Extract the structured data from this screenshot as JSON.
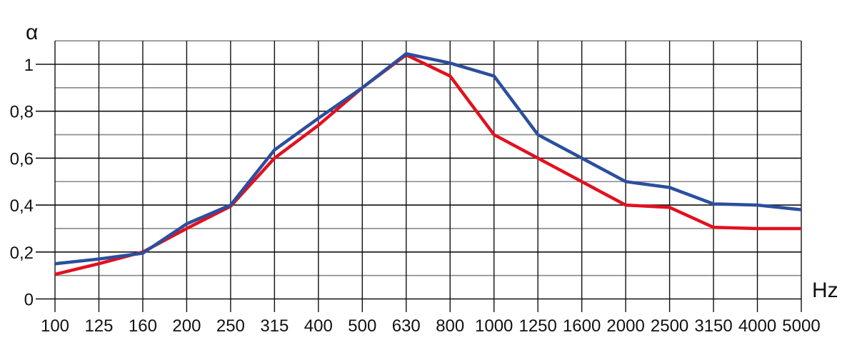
{
  "chart_data": {
    "type": "line",
    "title": "",
    "xlabel": "Hz",
    "ylabel": "α",
    "categories": [
      "100",
      "125",
      "160",
      "200",
      "250",
      "315",
      "400",
      "500",
      "630",
      "800",
      "1000",
      "1250",
      "1600",
      "2000",
      "2500",
      "3150",
      "4000",
      "5000"
    ],
    "y_ticks": [
      {
        "value": 0,
        "label": "0"
      },
      {
        "value": 0.2,
        "label": "0,2"
      },
      {
        "value": 0.4,
        "label": "0,4"
      },
      {
        "value": 0.6,
        "label": "0,6"
      },
      {
        "value": 0.8,
        "label": "0,8"
      },
      {
        "value": 1,
        "label": "1"
      }
    ],
    "ylim": [
      0,
      1.1
    ],
    "grid": true,
    "series": [
      {
        "color": "#2b4f9e",
        "values": [
          0.15,
          0.17,
          0.195,
          0.32,
          0.4,
          0.635,
          0.77,
          0.9,
          1.045,
          1.005,
          0.95,
          0.7,
          0.6,
          0.5,
          0.475,
          0.405,
          0.4,
          0.38
        ]
      },
      {
        "color": "#e3101e",
        "values": [
          0.105,
          0.15,
          0.2,
          0.3,
          0.395,
          0.6,
          0.74,
          0.9,
          1.04,
          0.95,
          0.7,
          0.6,
          0.5,
          0.4,
          0.39,
          0.305,
          0.3,
          0.3
        ]
      }
    ]
  }
}
